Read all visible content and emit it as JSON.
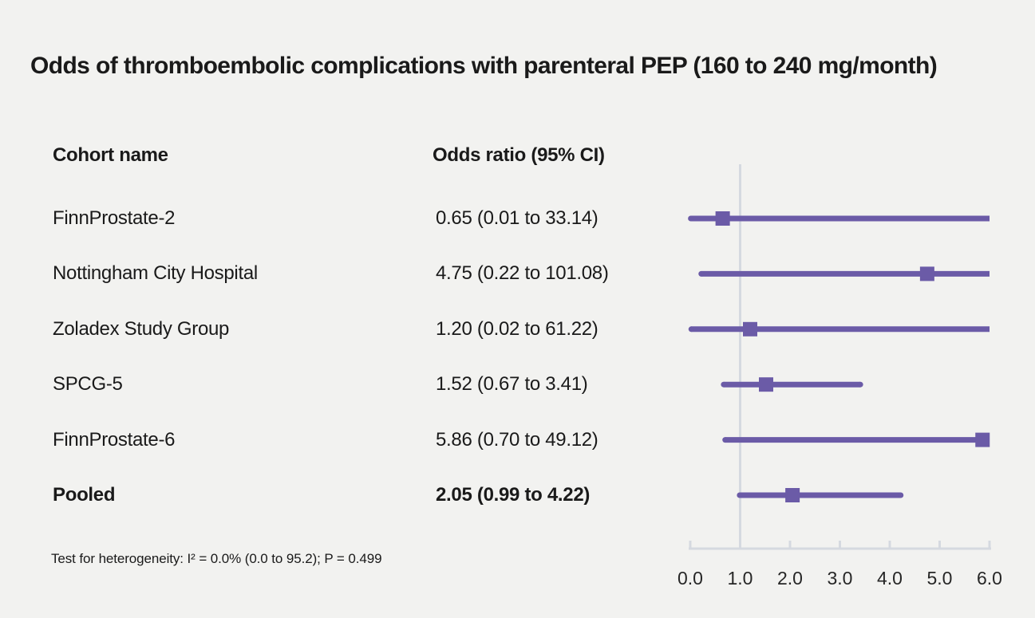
{
  "title": "Odds of thromboembolic complications with parenteral PEP (160 to 240 mg/month)",
  "columns": {
    "cohort": "Cohort name",
    "odds_ratio": "Odds ratio (95% CI)"
  },
  "footer": "Test for heterogeneity: I² = 0.0% (0.0 to 95.2); P = 0.499",
  "colors": {
    "marker": "#6b5ba7",
    "ci_line": "#6b5ba7",
    "axis": "#d5d9e0",
    "reference_line": "#d5d9e0",
    "background": "#f2f2f0",
    "text": "#1a1a1a",
    "tick_label": "#262626"
  },
  "chart_data": {
    "type": "forest",
    "title": "Odds of thromboembolic complications with parenteral PEP (160 to 240 mg/month)",
    "xlabel": "",
    "xlim": [
      0.0,
      6.0
    ],
    "xtick_values": [
      0.0,
      1.0,
      2.0,
      3.0,
      4.0,
      5.0,
      6.0
    ],
    "xtick_labels": [
      "0.0",
      "1.0",
      "2.0",
      "3.0",
      "4.0",
      "5.0",
      "6.0"
    ],
    "reference_line_x": 1.0,
    "rows": [
      {
        "name": "FinnProstate-2",
        "or": 0.65,
        "ci_low": 0.01,
        "ci_high": 33.14,
        "label": "0.65 (0.01 to 33.14)",
        "bold": false
      },
      {
        "name": "Nottingham City Hospital",
        "or": 4.75,
        "ci_low": 0.22,
        "ci_high": 101.08,
        "label": "4.75 (0.22 to 101.08)",
        "bold": false
      },
      {
        "name": "Zoladex Study Group",
        "or": 1.2,
        "ci_low": 0.02,
        "ci_high": 61.22,
        "label": "1.20 (0.02 to 61.22)",
        "bold": false
      },
      {
        "name": "SPCG-5",
        "or": 1.52,
        "ci_low": 0.67,
        "ci_high": 3.41,
        "label": "1.52 (0.67 to 3.41)",
        "bold": false
      },
      {
        "name": "FinnProstate-6",
        "or": 5.86,
        "ci_low": 0.7,
        "ci_high": 49.12,
        "label": "5.86 (0.70 to 49.12)",
        "bold": false
      },
      {
        "name": "Pooled",
        "or": 2.05,
        "ci_low": 0.99,
        "ci_high": 4.22,
        "label": "2.05 (0.99 to 4.22)",
        "bold": true
      }
    ]
  }
}
